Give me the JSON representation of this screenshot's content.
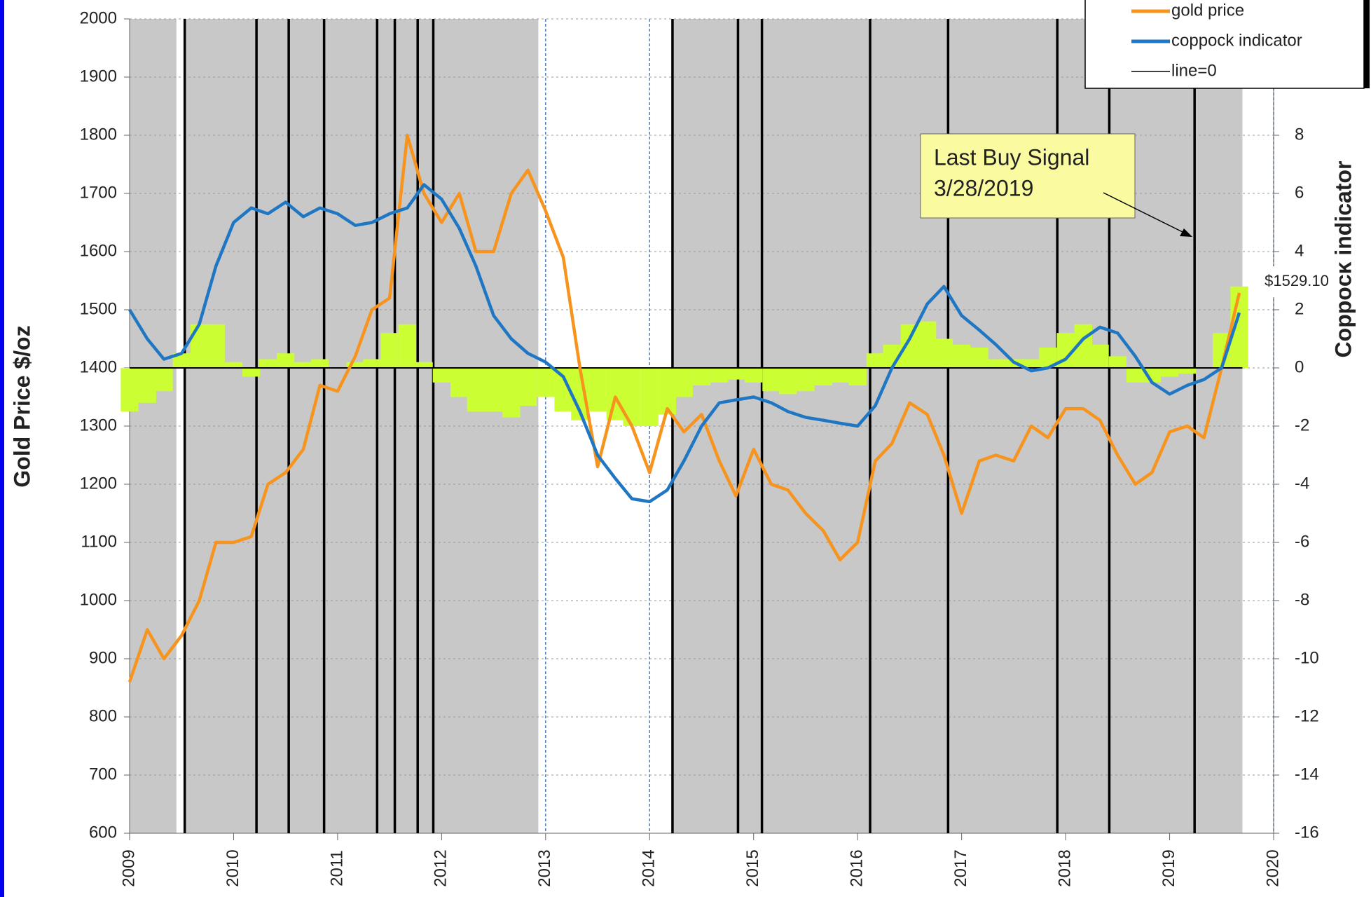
{
  "chart_data": {
    "type": "line",
    "y_label": "Gold Price  $/oz",
    "y2_label": "Coppock indicator",
    "x": [
      2009.0,
      2009.17,
      2009.33,
      2009.5,
      2009.67,
      2009.83,
      2010.0,
      2010.17,
      2010.33,
      2010.5,
      2010.67,
      2010.83,
      2011.0,
      2011.17,
      2011.33,
      2011.5,
      2011.67,
      2011.83,
      2012.0,
      2012.17,
      2012.33,
      2012.5,
      2012.67,
      2012.83,
      2013.0,
      2013.17,
      2013.33,
      2013.5,
      2013.67,
      2013.83,
      2014.0,
      2014.17,
      2014.33,
      2014.5,
      2014.67,
      2014.83,
      2015.0,
      2015.17,
      2015.33,
      2015.5,
      2015.67,
      2015.83,
      2016.0,
      2016.17,
      2016.33,
      2016.5,
      2016.67,
      2016.83,
      2017.0,
      2017.17,
      2017.33,
      2017.5,
      2017.67,
      2017.83,
      2018.0,
      2018.17,
      2018.33,
      2018.5,
      2018.67,
      2018.83,
      2019.0,
      2019.17,
      2019.33,
      2019.5,
      2019.67
    ],
    "series": [
      {
        "color": "#ccff33",
        "axis": "y2",
        "style": "bars",
        "values": [
          -1.5,
          -1.2,
          -0.8,
          0.5,
          1.5,
          1.5,
          0.2,
          -0.3,
          0.3,
          0.5,
          0.2,
          0.3,
          0,
          0.2,
          0.3,
          1.2,
          1.5,
          0.2,
          -0.5,
          -1,
          -1.5,
          -1.5,
          -1.7,
          -1.3,
          -1,
          -1.5,
          -1.8,
          -1.5,
          -1.8,
          -2,
          -2,
          -1.6,
          -1.0,
          -0.6,
          -0.5,
          -0.4,
          -0.5,
          -0.8,
          -0.9,
          -0.8,
          -0.6,
          -0.5,
          -0.6,
          0.5,
          0.8,
          1.5,
          1.6,
          1.0,
          0.8,
          0.7,
          0.3,
          0.3,
          0.3,
          0.7,
          1.2,
          1.5,
          0.8,
          0.4,
          -0.5,
          -0.5,
          -0.3,
          -0.2,
          0,
          1.2,
          2.8
        ]
      },
      {
        "name": "gold price",
        "color": "#f7941d",
        "axis": "y",
        "style": "line",
        "values": [
          860,
          950,
          900,
          940,
          1000,
          1100,
          1100,
          1110,
          1200,
          1220,
          1260,
          1370,
          1360,
          1420,
          1500,
          1520,
          1800,
          1700,
          1650,
          1700,
          1600,
          1600,
          1700,
          1740,
          1670,
          1590,
          1400,
          1230,
          1350,
          1300,
          1220,
          1330,
          1290,
          1320,
          1240,
          1180,
          1260,
          1200,
          1190,
          1150,
          1120,
          1070,
          1100,
          1240,
          1270,
          1340,
          1320,
          1250,
          1150,
          1240,
          1250,
          1240,
          1300,
          1280,
          1330,
          1330,
          1310,
          1250,
          1200,
          1220,
          1290,
          1300,
          1280,
          1400,
          1529.1
        ]
      },
      {
        "name": "coppock indicator",
        "color": "#1f77c4",
        "axis": "y2",
        "style": "line",
        "values": [
          2,
          1,
          0.3,
          0.5,
          1.5,
          3.5,
          5,
          5.5,
          5.3,
          5.7,
          5.2,
          5.5,
          5.3,
          4.9,
          5.0,
          5.3,
          5.5,
          6.3,
          5.8,
          4.8,
          3.5,
          1.8,
          1.0,
          0.5,
          0.2,
          -0.3,
          -1.5,
          -3.0,
          -3.8,
          -4.5,
          -4.6,
          -4.2,
          -3.2,
          -2.0,
          -1.2,
          -1.1,
          -1.0,
          -1.2,
          -1.5,
          -1.7,
          -1.8,
          -1.9,
          -2.0,
          -1.3,
          0.0,
          1.0,
          2.2,
          2.8,
          1.8,
          1.3,
          0.8,
          0.2,
          -0.1,
          0,
          0.3,
          1.0,
          1.4,
          1.2,
          0.4,
          -0.5,
          -0.9,
          -0.6,
          -0.4,
          0,
          1.9
        ]
      }
    ],
    "reference_line": {
      "name": "line=0",
      "value": 0,
      "axis": "y2",
      "color": "#000000"
    },
    "shaded_ranges": [
      [
        2009.0,
        2009.45
      ],
      [
        2009.53,
        2012.93
      ],
      [
        2014.22,
        2019.7
      ]
    ],
    "signals": [
      2009.53,
      2010.22,
      2010.53,
      2010.87,
      2011.38,
      2011.55,
      2011.77,
      2011.92,
      2014.22,
      2014.85,
      2015.08,
      2016.12,
      2016.87,
      2017.92,
      2018.42,
      2019.24
    ],
    "dashed_lines": [
      2013.0,
      2014.0,
      2020.0
    ],
    "annotation": {
      "lines": [
        "Last Buy Signal",
        "3/28/2019"
      ]
    },
    "last_price_label": "$1529.10",
    "xlim": [
      2009,
      2020
    ],
    "xticks": [
      2009,
      2010,
      2011,
      2012,
      2013,
      2014,
      2015,
      2016,
      2017,
      2018,
      2019,
      2020
    ],
    "ylim": [
      600,
      2000
    ],
    "yticks": [
      600,
      700,
      800,
      900,
      1000,
      1100,
      1200,
      1300,
      1400,
      1500,
      1600,
      1700,
      1800,
      1900,
      2000
    ],
    "y2lim": [
      -16,
      12
    ],
    "y2ticks": [
      -16,
      -14,
      -12,
      -10,
      -8,
      -6,
      -4,
      -2,
      0,
      2,
      4,
      6,
      8
    ],
    "grid": true
  }
}
